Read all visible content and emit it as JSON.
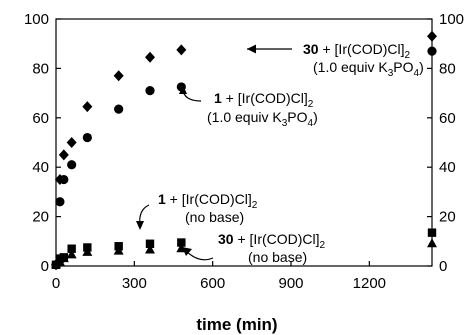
{
  "chart_data": {
    "type": "scatter",
    "xlabel": "time (min)",
    "ylabel": "",
    "xlim": [
      0,
      1440
    ],
    "ylim": [
      0,
      100
    ],
    "x_ticks": [
      "0",
      "300",
      "600",
      "900",
      "1200"
    ],
    "x_tick_values": [
      0,
      300,
      600,
      900,
      1200
    ],
    "y_ticks": [
      "0",
      "20",
      "40",
      "60",
      "80",
      "100"
    ],
    "y_tick_values": [
      0,
      20,
      40,
      60,
      80,
      100
    ],
    "right_axis_ticks": [
      "0",
      "20",
      "40",
      "60",
      "80",
      "100"
    ],
    "grid": false,
    "legend": "none",
    "series": [
      {
        "marker": "diamond",
        "points": [
          [
            0,
            0.5
          ],
          [
            15,
            35
          ],
          [
            30,
            45
          ],
          [
            60,
            50
          ],
          [
            120,
            64.5
          ],
          [
            240,
            77
          ],
          [
            360,
            84.5
          ],
          [
            480,
            87.5
          ],
          [
            1440,
            93
          ]
        ]
      },
      {
        "marker": "circle",
        "points": [
          [
            0,
            0.5
          ],
          [
            15,
            26
          ],
          [
            30,
            35
          ],
          [
            60,
            41
          ],
          [
            120,
            52
          ],
          [
            240,
            63.5
          ],
          [
            360,
            71
          ],
          [
            480,
            72.5
          ],
          [
            1440,
            87
          ]
        ]
      },
      {
        "marker": "square",
        "points": [
          [
            0,
            0.5
          ],
          [
            15,
            3
          ],
          [
            30,
            3.5
          ],
          [
            60,
            7
          ],
          [
            120,
            7.5
          ],
          [
            240,
            8
          ],
          [
            360,
            9
          ],
          [
            480,
            9.5
          ],
          [
            1440,
            13.5
          ]
        ]
      },
      {
        "marker": "triangle",
        "points": [
          [
            0,
            0.5
          ],
          [
            15,
            1.5
          ],
          [
            30,
            3
          ],
          [
            60,
            4.5
          ],
          [
            120,
            5.5
          ],
          [
            240,
            6
          ],
          [
            360,
            6.5
          ],
          [
            480,
            7
          ],
          [
            1440,
            9
          ]
        ]
      }
    ],
    "annotations": [
      {
        "bold": "30",
        "line1": " + [Ir(COD)Cl]",
        "sub1": "2",
        "line2_pre": "(1.0 equiv K",
        "line2_sub1": "3",
        "line2_mid": "PO",
        "line2_sub2": "4",
        "line2_post": ")"
      },
      {
        "bold": "1",
        "line1": " + [Ir(COD)Cl]",
        "sub1": "2",
        "line2_pre": "(1.0 equiv K",
        "line2_sub1": "3",
        "line2_mid": "PO",
        "line2_sub2": "4",
        "line2_post": ")"
      },
      {
        "bold": "1",
        "line1": " + [Ir(COD)Cl]",
        "sub1": "2",
        "line2": "(no base)"
      },
      {
        "bold": "30",
        "line1": " + [Ir(COD)Cl]",
        "sub1": "2",
        "line2": "(no base)"
      }
    ]
  }
}
